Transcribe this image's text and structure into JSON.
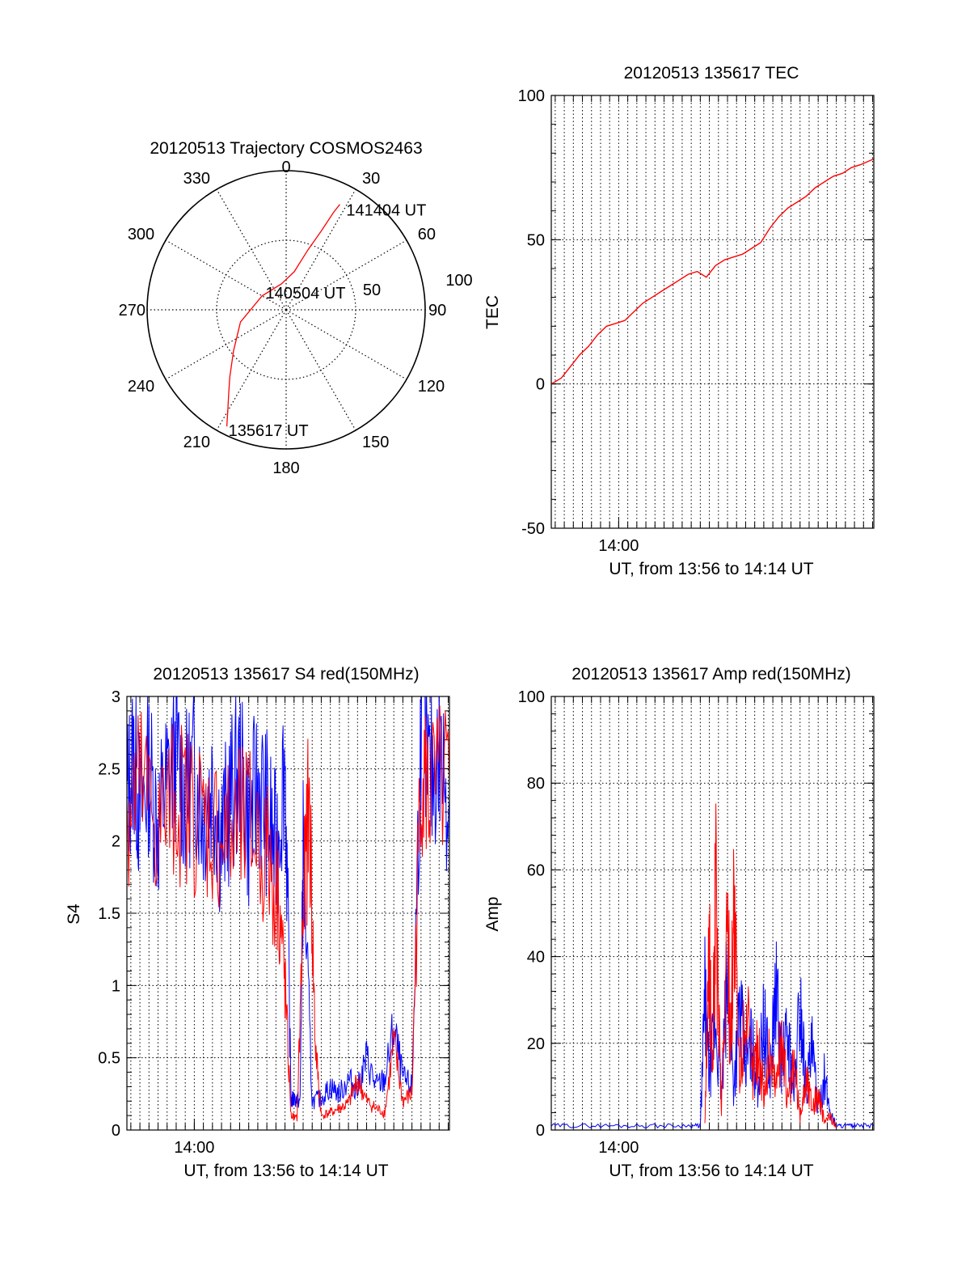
{
  "colors": {
    "red": "#ff0000",
    "blue": "#0000ff",
    "axis": "#000000",
    "grid": "#000000",
    "background": "#ffffff"
  },
  "chart_data": [
    {
      "type": "polar",
      "title": "20120513 Trajectory COSMOS2463",
      "azimuth_labels": [
        "0",
        "30",
        "60",
        "90",
        "120",
        "150",
        "180",
        "210",
        "240",
        "270",
        "300",
        "330"
      ],
      "radial_labels": [
        "50",
        "100"
      ],
      "rlim": [
        0,
        100
      ],
      "grid": true,
      "track": {
        "color": "#ff0000",
        "points": [
          {
            "az": 207,
            "r": 94
          },
          {
            "az": 210,
            "r": 84
          },
          {
            "az": 214,
            "r": 74
          },
          {
            "az": 220,
            "r": 63
          },
          {
            "az": 232,
            "r": 48
          },
          {
            "az": 255,
            "r": 34
          },
          {
            "az": 300,
            "r": 20
          },
          {
            "az": 350,
            "r": 19
          },
          {
            "az": 12,
            "r": 28
          },
          {
            "az": 20,
            "r": 46
          },
          {
            "az": 24,
            "r": 62
          },
          {
            "az": 26,
            "r": 78
          },
          {
            "az": 27,
            "r": 85
          }
        ]
      },
      "annotations": [
        {
          "text": "141404 UT",
          "az": 27,
          "r": 85
        },
        {
          "text": "140504 UT",
          "az": 0,
          "r": 0
        },
        {
          "text": "135617 UT",
          "az": 207,
          "r": 94
        }
      ]
    },
    {
      "type": "line",
      "title": "20120513 135617 TEC",
      "xlabel": "UT, from 13:56 to 14:14 UT",
      "ylabel": "TEC",
      "xlim": [
        "13:56:17",
        "14:14:04"
      ],
      "ylim": [
        -50,
        100
      ],
      "yticks": [
        "-50",
        "0",
        "50",
        "100"
      ],
      "xticks": [
        {
          "t": "14:00",
          "label": "14:00"
        }
      ],
      "grid": true,
      "series": [
        {
          "color": "#ff0000",
          "x": [
            "13:56:17",
            "13:56:50",
            "13:57:20",
            "13:57:50",
            "13:58:20",
            "13:58:50",
            "13:59:20",
            "13:59:50",
            "14:00:20",
            "14:00:50",
            "14:01:20",
            "14:01:50",
            "14:02:20",
            "14:02:50",
            "14:03:20",
            "14:03:50",
            "14:04:20",
            "14:04:50",
            "14:05:20",
            "14:05:50",
            "14:06:20",
            "14:06:50",
            "14:07:20",
            "14:07:50",
            "14:08:20",
            "14:08:50",
            "14:09:20",
            "14:09:50",
            "14:10:20",
            "14:10:50",
            "14:11:20",
            "14:11:50",
            "14:12:20",
            "14:12:50",
            "14:13:20",
            "14:14:04"
          ],
          "y": [
            0,
            2,
            6,
            10,
            13,
            17,
            20,
            21,
            22,
            25,
            28,
            30,
            32,
            34,
            36,
            38,
            39,
            37,
            41,
            43,
            44,
            45,
            47,
            49,
            54,
            58,
            61,
            63,
            65,
            68,
            70,
            72,
            73,
            75,
            76,
            78
          ]
        }
      ]
    },
    {
      "type": "line",
      "title": "20120513 135617 S4 red(150MHz)",
      "xlabel": "UT, from 13:56 to 14:14 UT",
      "ylabel": "S4",
      "xlim": [
        "13:56:17",
        "14:14:04"
      ],
      "ylim": [
        0,
        3
      ],
      "yticks": [
        "0",
        "0.5",
        "1",
        "1.5",
        "2",
        "2.5",
        "3"
      ],
      "xticks": [
        {
          "t": "14:00",
          "label": "14:00"
        }
      ],
      "grid": true,
      "series": [
        {
          "color": "#0000ff",
          "x": [
            "13:56:17",
            "13:56:40",
            "13:57:00",
            "13:57:30",
            "13:58:00",
            "13:58:30",
            "13:59:00",
            "13:59:30",
            "14:00:00",
            "14:00:30",
            "14:01:00",
            "14:01:30",
            "14:02:00",
            "14:02:30",
            "14:03:00",
            "14:03:30",
            "14:04:00",
            "14:04:30",
            "14:05:00",
            "14:05:20",
            "14:05:30",
            "14:05:50",
            "14:06:00",
            "14:06:30",
            "14:07:00",
            "14:07:30",
            "14:08:00",
            "14:08:30",
            "14:09:00",
            "14:09:30",
            "14:10:00",
            "14:10:30",
            "14:11:00",
            "14:11:30",
            "14:12:00",
            "14:12:30",
            "14:13:00",
            "14:13:30",
            "14:14:04"
          ],
          "y": [
            2.3,
            2.6,
            2.2,
            2.5,
            2.1,
            2.4,
            2.6,
            2.3,
            2.5,
            2.2,
            2.4,
            2.0,
            2.3,
            2.5,
            2.1,
            2.4,
            2.2,
            1.9,
            2.6,
            0.2,
            0.22,
            0.2,
            1.9,
            0.2,
            0.22,
            0.3,
            0.25,
            0.35,
            0.28,
            0.5,
            0.3,
            0.35,
            0.7,
            0.35,
            0.3,
            2.8,
            2.4,
            2.6,
            2.3
          ]
        },
        {
          "color": "#ff0000",
          "x": [
            "13:56:17",
            "13:57:00",
            "13:58:00",
            "13:59:00",
            "14:00:00",
            "14:01:00",
            "14:02:00",
            "14:03:00",
            "14:04:00",
            "14:04:40",
            "14:05:00",
            "14:05:20",
            "14:05:40",
            "14:06:00",
            "14:06:20",
            "14:06:40",
            "14:07:00",
            "14:07:30",
            "14:08:00",
            "14:08:30",
            "14:09:00",
            "14:09:30",
            "14:10:00",
            "14:10:30",
            "14:11:00",
            "14:11:30",
            "14:12:00",
            "14:12:30",
            "14:13:00",
            "14:14:04"
          ],
          "y": [
            2.2,
            2.4,
            2.1,
            2.3,
            2.2,
            2.1,
            2.0,
            2.1,
            1.9,
            1.6,
            1.0,
            0.1,
            0.08,
            1.5,
            2.3,
            0.6,
            0.1,
            0.12,
            0.15,
            0.18,
            0.35,
            0.2,
            0.15,
            0.12,
            0.6,
            0.2,
            0.25,
            2.5,
            2.3,
            2.4
          ]
        }
      ]
    },
    {
      "type": "line",
      "title": "20120513 135617 Amp red(150MHz)",
      "xlabel": "UT, from 13:56 to 14:14 UT",
      "ylabel": "Amp",
      "xlim": [
        "13:56:17",
        "14:14:04"
      ],
      "ylim": [
        0,
        100
      ],
      "yticks": [
        "0",
        "20",
        "40",
        "60",
        "80",
        "100"
      ],
      "xticks": [
        {
          "t": "14:00",
          "label": "14:00"
        }
      ],
      "grid": true,
      "series": [
        {
          "color": "#0000ff",
          "x": [
            "13:56:17",
            "13:58:00",
            "14:00:00",
            "14:02:00",
            "14:04:00",
            "14:04:30",
            "14:04:45",
            "14:05:00",
            "14:05:20",
            "14:05:40",
            "14:06:00",
            "14:06:20",
            "14:06:40",
            "14:07:00",
            "14:07:20",
            "14:07:40",
            "14:08:00",
            "14:08:20",
            "14:08:40",
            "14:09:00",
            "14:09:20",
            "14:09:40",
            "14:10:00",
            "14:10:20",
            "14:10:40",
            "14:11:00",
            "14:11:20",
            "14:11:40",
            "14:12:00",
            "14:12:30",
            "14:13:00",
            "14:14:04"
          ],
          "y": [
            1,
            1,
            1,
            1,
            1,
            1,
            30,
            12,
            25,
            8,
            35,
            10,
            28,
            15,
            20,
            10,
            25,
            12,
            32,
            15,
            22,
            8,
            30,
            10,
            18,
            5,
            12,
            4,
            1,
            1,
            1,
            1
          ]
        },
        {
          "color": "#ff0000",
          "x": [
            "14:04:45",
            "14:05:00",
            "14:05:10",
            "14:05:20",
            "14:05:40",
            "14:06:00",
            "14:06:10",
            "14:06:20",
            "14:06:40",
            "14:07:00",
            "14:07:20",
            "14:07:40",
            "14:08:00",
            "14:08:20",
            "14:08:40",
            "14:09:00",
            "14:09:20",
            "14:09:40",
            "14:10:00",
            "14:10:20",
            "14:10:40",
            "14:11:00",
            "14:11:20",
            "14:11:40",
            "14:12:00"
          ],
          "y": [
            2,
            40,
            10,
            55,
            5,
            48,
            20,
            52,
            10,
            30,
            12,
            20,
            8,
            18,
            10,
            22,
            6,
            15,
            3,
            12,
            6,
            8,
            2,
            3,
            1
          ]
        }
      ]
    }
  ]
}
